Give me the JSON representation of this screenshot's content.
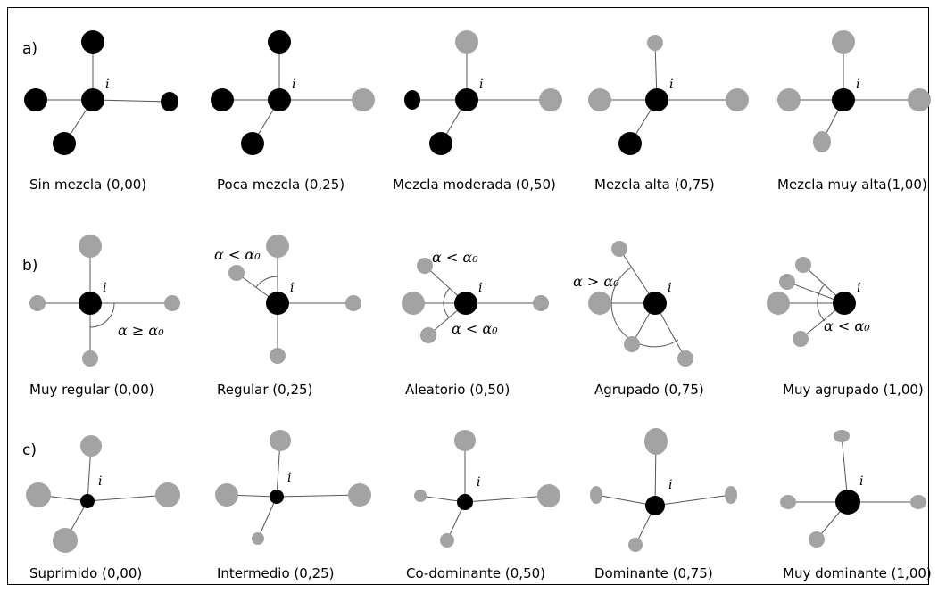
{
  "rows": [
    {
      "label": "a)",
      "captions": [
        "Sin mezcla (0,00)",
        "Poca mezcla (0,25)",
        "Mezcla moderada (0,50)",
        "Mezcla alta (0,75)",
        "Mezcla muy alta(1,00)"
      ]
    },
    {
      "label": "b)",
      "captions": [
        "Muy regular (0,00)",
        "Regular (0,25)",
        "Aleatorio (0,50)",
        "Agrupado (0,75)",
        "Muy agrupado (1,00)"
      ]
    },
    {
      "label": "c)",
      "captions": [
        "Suprimido (0,00)",
        "Intermedio (0,25)",
        "Co-dominante (0,50)",
        "Dominante (0,75)",
        "Muy dominante (1,00)"
      ]
    }
  ],
  "focal_label": "i",
  "angle_labels": {
    "ge": "α ≥ α₀",
    "lt": "α < α₀",
    "gt": "α > α₀"
  },
  "colors": {
    "focal": "#000000",
    "neighbor_same": "#000000",
    "neighbor_other": "#a3a3a3"
  }
}
